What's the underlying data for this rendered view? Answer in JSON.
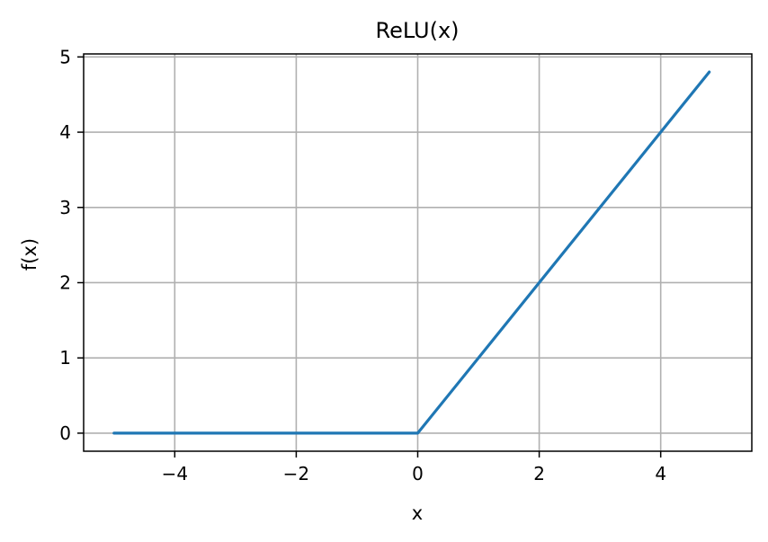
{
  "chart_data": {
    "type": "line",
    "title": "ReLU(x)",
    "xlabel": "x",
    "ylabel": "f(x)",
    "xlim": [
      -5.5,
      5.5
    ],
    "ylim": [
      -0.24,
      5.04
    ],
    "grid": true,
    "x_ticks": [
      -4,
      -2,
      0,
      2,
      4
    ],
    "x_tick_labels": [
      "−4",
      "−2",
      "0",
      "2",
      "4"
    ],
    "y_ticks": [
      0,
      1,
      2,
      3,
      4,
      5
    ],
    "y_tick_labels": [
      "0",
      "1",
      "2",
      "3",
      "4",
      "5"
    ],
    "colors": {
      "line": "#1f77b4",
      "grid": "#b0b0b0",
      "axes": "#000000"
    },
    "series": [
      {
        "x": [
          -5.0,
          0.0,
          4.8
        ],
        "y": [
          0.0,
          0.0,
          4.8
        ]
      }
    ]
  }
}
